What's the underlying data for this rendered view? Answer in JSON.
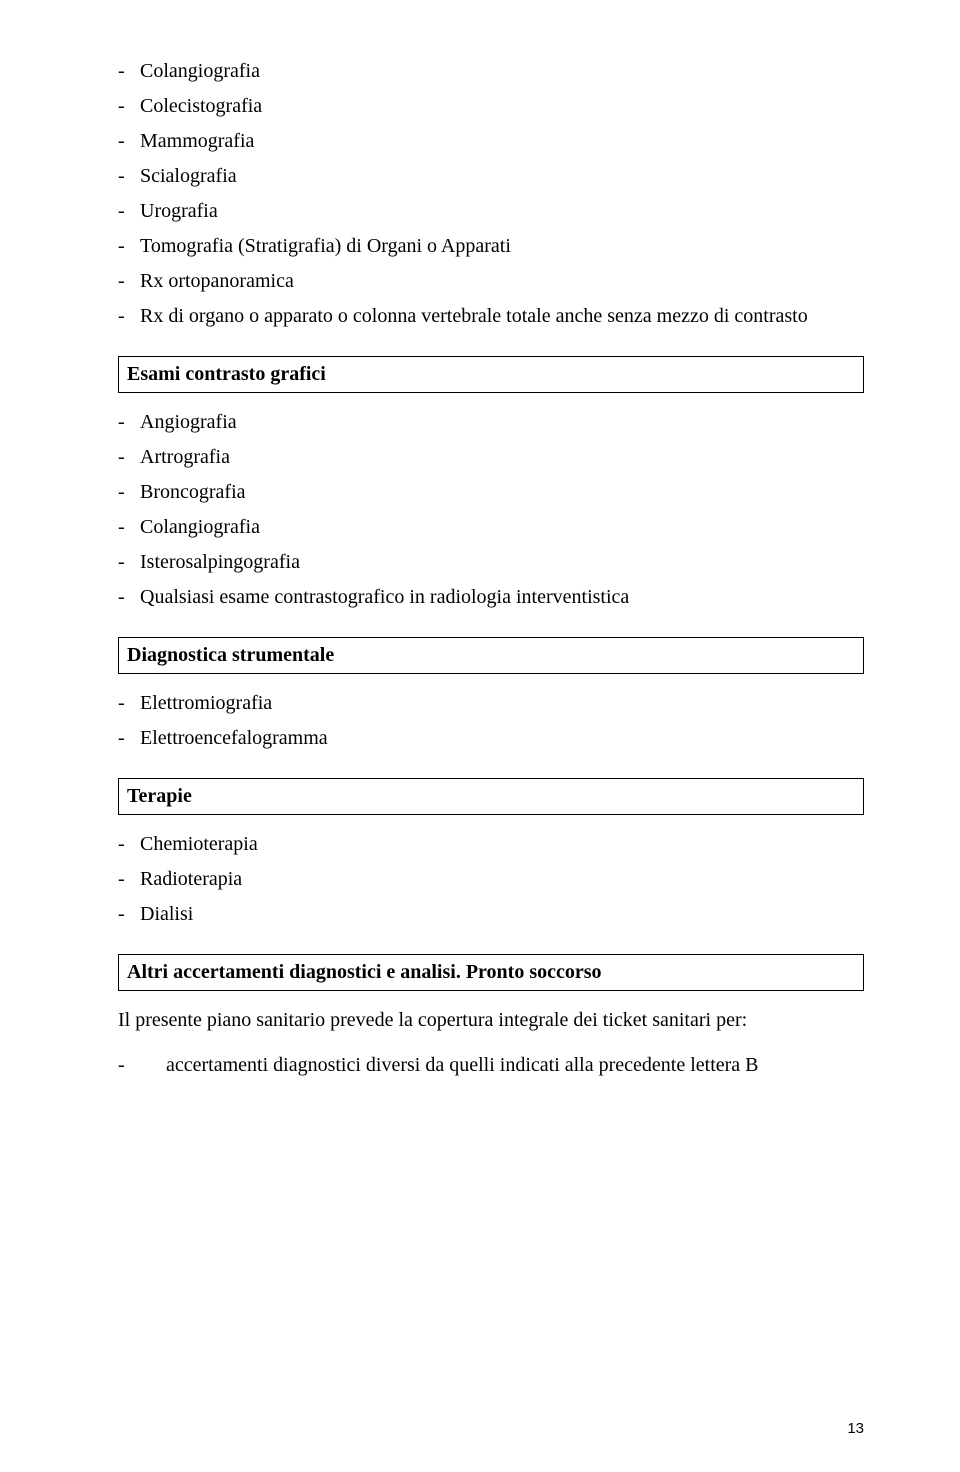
{
  "list1": [
    "Colangiografia",
    "Colecistografia",
    "Mammografia",
    "Scialografia",
    "Urografia",
    "Tomografia (Stratigrafia) di Organi o Apparati",
    "Rx ortopanoramica",
    "Rx di organo o apparato o colonna vertebrale totale anche senza mezzo di contrasto"
  ],
  "box1": "Esami contrasto grafici",
  "list2": [
    "Angiografia",
    "Artrografia",
    "Broncografia",
    "Colangiografia",
    "Isterosalpingografia",
    "Qualsiasi esame contrastografico in radiologia interventistica"
  ],
  "box2": "Diagnostica strumentale",
  "list3": [
    "Elettromiografia",
    "Elettroencefalogramma"
  ],
  "box3": "Terapie",
  "list4": [
    "Chemioterapia",
    "Radioterapia",
    "Dialisi"
  ],
  "box4": "Altri accertamenti diagnostici e analisi. Pronto soccorso",
  "para1": "Il presente piano sanitario prevede la copertura integrale dei ticket sanitari per:",
  "hang1": "accertamenti diagnostici diversi da quelli indicati alla precedente lettera B",
  "pagenum": "13"
}
